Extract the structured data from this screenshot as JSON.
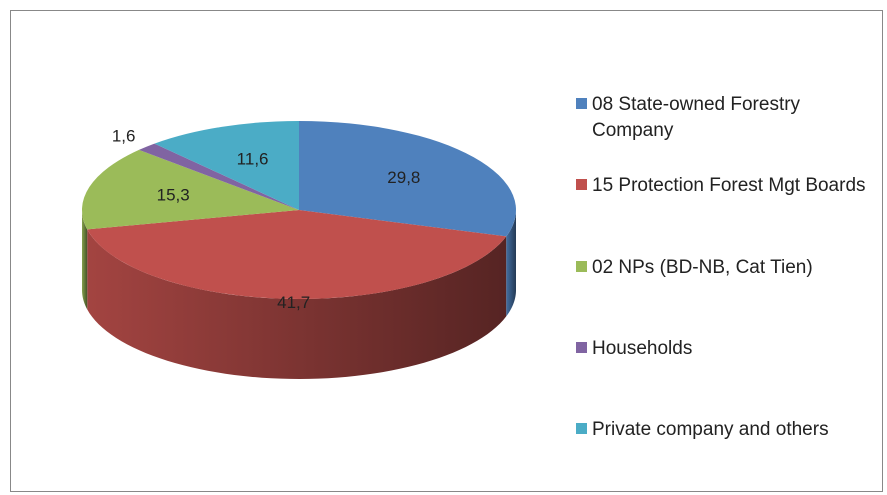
{
  "chart_data": {
    "type": "pie3d",
    "categories": [
      "08 State-owned Forestry Company",
      "15 Protection Forest Mgt Boards",
      "02 NPs (BD-NB, Cat Tien)",
      "Households",
      "Private company and others"
    ],
    "series": [
      {
        "values": [
          29.8,
          41.7,
          15.3,
          1.6,
          11.6
        ],
        "value_labels": [
          "29,8",
          "41,7",
          "15,3",
          "1,6",
          "11,6"
        ],
        "colors": [
          "#4f81bd",
          "#c0504d",
          "#9bbb59",
          "#8064a2",
          "#4bacc6"
        ]
      }
    ],
    "legend": "right"
  }
}
